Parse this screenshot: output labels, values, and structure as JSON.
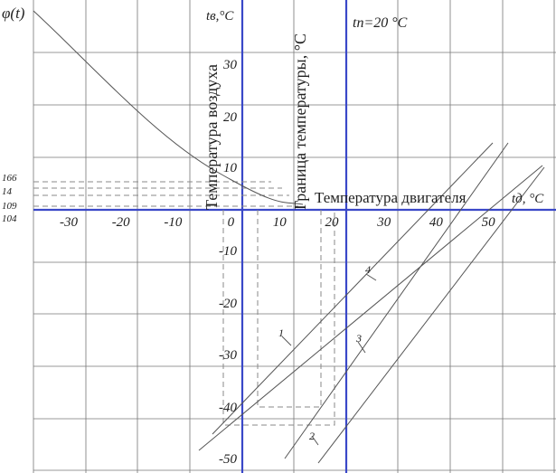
{
  "header": {
    "function_label": "φ(t)",
    "air_axis_label": "tв,°C",
    "threshold_label": "tп=20 °C",
    "engine_axis_label": "tд, °C"
  },
  "rotated_labels": {
    "air": "Температура воздуха",
    "boundary": "Граница температуры, °C"
  },
  "engine_caption": "Температура двигателя",
  "x_tick_labels": [
    "-30",
    "-20",
    "-10",
    "0",
    "10",
    "20",
    "30",
    "40",
    "50"
  ],
  "y_tick_labels": [
    "30",
    "20",
    "10",
    "-10",
    "-20",
    "-30",
    "-40",
    "-50"
  ],
  "coefficient_labels": [
    "166",
    "14",
    "109",
    "104"
  ],
  "line_labels": [
    "1",
    "2",
    "3",
    "4"
  ]
}
